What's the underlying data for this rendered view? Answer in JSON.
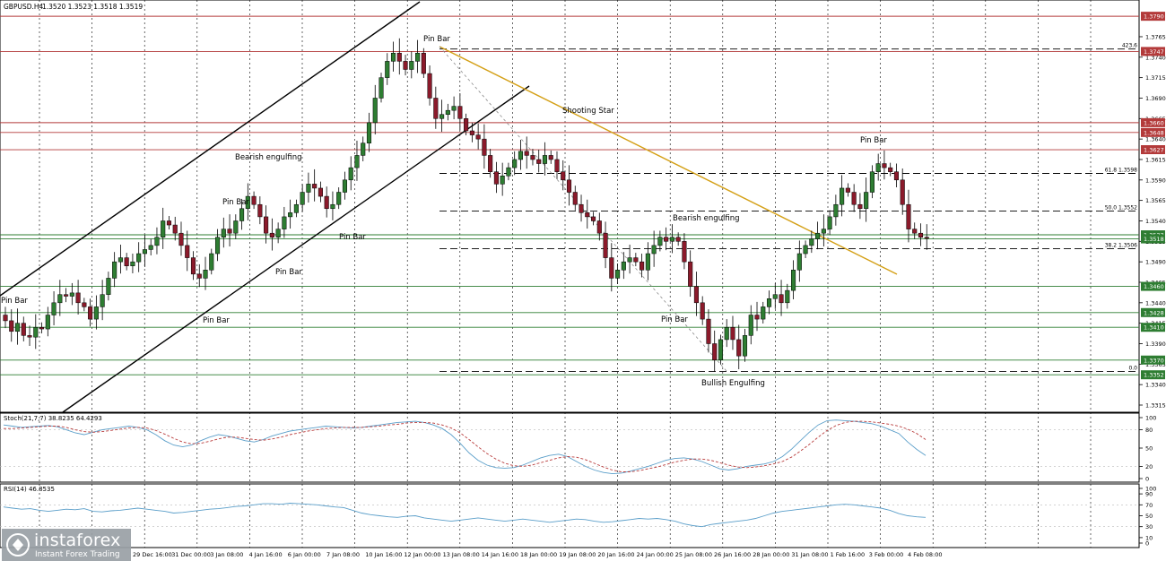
{
  "chart_data": [
    {
      "type": "candlestick",
      "symbol": "GBPUSD.H4",
      "ohlc_readout": [
        "1.3520",
        "1.3523",
        "1.3518",
        "1.3519"
      ],
      "y_range": [
        1.3315,
        1.38
      ],
      "price_ticks": [
        "1.3765",
        "1.3740",
        "1.3715",
        "1.3690",
        "1.3665",
        "1.3640",
        "1.3615",
        "1.3590",
        "1.3565",
        "1.3540",
        "1.3515",
        "1.3490",
        "1.3465",
        "1.3440",
        "1.3415",
        "1.3390",
        "1.3365",
        "1.3340",
        "1.3315"
      ],
      "horizontal_levels": [
        {
          "label": "1.3790",
          "price": 1.379,
          "color": "#b33a3a"
        },
        {
          "label": "1.3747",
          "price": 1.3747,
          "color": "#b33a3a"
        },
        {
          "label": "1.3660",
          "price": 1.366,
          "color": "#b33a3a"
        },
        {
          "label": "1.3648",
          "price": 1.3648,
          "color": "#b33a3a"
        },
        {
          "label": "1.3627",
          "price": 1.3627,
          "color": "#b33a3a"
        },
        {
          "label": "1.3523",
          "price": 1.3523,
          "color": "#2e7d32"
        },
        {
          "label": "1.3518",
          "price": 1.3518,
          "color": "#2e7d32"
        },
        {
          "label": "1.3460",
          "price": 1.346,
          "color": "#2e7d32"
        },
        {
          "label": "1.3428",
          "price": 1.3428,
          "color": "#2e7d32"
        },
        {
          "label": "1.3410",
          "price": 1.341,
          "color": "#2e7d32"
        },
        {
          "label": "1.3370",
          "price": 1.337,
          "color": "#2e7d32"
        },
        {
          "label": "1.3352",
          "price": 1.3352,
          "color": "#2e7d32"
        }
      ],
      "fibonacci": [
        {
          "label": "423.6",
          "price": 1.375
        },
        {
          "label": "61.8 1.3598",
          "price": 1.3598
        },
        {
          "label": "50.0 1.3552",
          "price": 1.3552
        },
        {
          "label": "38.2 1.3506",
          "price": 1.3506
        },
        {
          "label": "0.0",
          "price": 1.3356
        }
      ],
      "x_labels": [
        "29 Dec 16:00",
        "31 Dec 00:00",
        "3 Jan 08:00",
        "4 Jan 16:00",
        "6 Jan 00:00",
        "7 Jan 08:00",
        "10 Jan 16:00",
        "12 Jan 00:00",
        "13 Jan 08:00",
        "14 Jan 16:00",
        "18 Jan 00:00",
        "19 Jan 08:00",
        "20 Jan 16:00",
        "24 Jan 00:00",
        "25 Jan 08:00",
        "26 Jan 16:00",
        "28 Jan 00:00",
        "31 Jan 08:00",
        "1 Feb 16:00",
        "3 Feb 00:00",
        "4 Feb 08:00"
      ],
      "annotations": [
        "Pin Bar",
        "Shooting Star",
        "Bearish engulfing",
        "Pin Bar",
        "Pin Bar",
        "Pin Bar",
        "Pin Bar",
        "Pin Bar",
        "Bearish engulfing",
        "Pin Bar",
        "Bullish Engulfing",
        "Pin Bar"
      ],
      "price_path": [
        1.3425,
        1.3418,
        1.3405,
        1.3415,
        1.34,
        1.3398,
        1.341,
        1.3408,
        1.3425,
        1.344,
        1.345,
        1.3448,
        1.3452,
        1.344,
        1.3435,
        1.342,
        1.3435,
        1.345,
        1.347,
        1.349,
        1.3495,
        1.3485,
        1.349,
        1.35,
        1.3505,
        1.351,
        1.352,
        1.354,
        1.3535,
        1.3525,
        1.351,
        1.3495,
        1.3475,
        1.347,
        1.348,
        1.35,
        1.352,
        1.353,
        1.3525,
        1.354,
        1.3555,
        1.357,
        1.356,
        1.3545,
        1.3525,
        1.352,
        1.353,
        1.3545,
        1.355,
        1.356,
        1.3575,
        1.3585,
        1.358,
        1.357,
        1.3555,
        1.356,
        1.3575,
        1.359,
        1.3605,
        1.362,
        1.3635,
        1.366,
        1.369,
        1.3715,
        1.3735,
        1.3745,
        1.3735,
        1.3725,
        1.3735,
        1.3745,
        1.372,
        1.369,
        1.3665,
        1.367,
        1.3675,
        1.368,
        1.3665,
        1.365,
        1.3645,
        1.364,
        1.362,
        1.36,
        1.3585,
        1.3595,
        1.3605,
        1.3615,
        1.3625,
        1.362,
        1.3615,
        1.361,
        1.362,
        1.3615,
        1.36,
        1.359,
        1.3575,
        1.356,
        1.355,
        1.3545,
        1.354,
        1.3525,
        1.3495,
        1.347,
        1.348,
        1.349,
        1.3495,
        1.349,
        1.348,
        1.35,
        1.351,
        1.352,
        1.3515,
        1.352,
        1.3515,
        1.349,
        1.346,
        1.344,
        1.342,
        1.339,
        1.337,
        1.3395,
        1.341,
        1.3395,
        1.3375,
        1.34,
        1.3425,
        1.342,
        1.3435,
        1.3445,
        1.345,
        1.344,
        1.3455,
        1.348,
        1.35,
        1.351,
        1.3518,
        1.3525,
        1.353,
        1.3545,
        1.356,
        1.358,
        1.3575,
        1.356,
        1.3555,
        1.3575,
        1.36,
        1.361,
        1.3605,
        1.36,
        1.359,
        1.356,
        1.353,
        1.3525,
        1.352,
        1.3519
      ]
    },
    {
      "type": "line",
      "title": "Stoch(21,7,7) 38.8235 64.4293",
      "y_ticks": [
        "100",
        "80",
        "50",
        "20",
        "0"
      ],
      "y_range": [
        0,
        100
      ],
      "series": [
        {
          "values": [
            88,
            86,
            84,
            85,
            86,
            87,
            85,
            80,
            75,
            72,
            76,
            80,
            82,
            84,
            86,
            84,
            80,
            72,
            62,
            55,
            52,
            55,
            62,
            68,
            72,
            70,
            66,
            62,
            60,
            64,
            70,
            74,
            78,
            80,
            82,
            84,
            86,
            85,
            84,
            83,
            84,
            86,
            88,
            90,
            92,
            93,
            94,
            92,
            88,
            82,
            72,
            58,
            42,
            30,
            22,
            18,
            17,
            18,
            22,
            28,
            34,
            38,
            40,
            36,
            28,
            20,
            14,
            10,
            8,
            9,
            12,
            16,
            20,
            25,
            30,
            33,
            34,
            32,
            28,
            22,
            16,
            14,
            16,
            20,
            22,
            24,
            28,
            36,
            48,
            62,
            76,
            88,
            95,
            96,
            95,
            94,
            92,
            90,
            86,
            80,
            74,
            60,
            48,
            38
          ]
        },
        {
          "values": [
            82,
            82,
            83,
            84,
            85,
            86,
            86,
            84,
            80,
            77,
            76,
            77,
            79,
            81,
            83,
            84,
            83,
            79,
            73,
            66,
            60,
            57,
            58,
            61,
            65,
            68,
            68,
            66,
            64,
            63,
            65,
            68,
            72,
            75,
            78,
            80,
            82,
            83,
            84,
            84,
            84,
            85,
            86,
            88,
            89,
            91,
            92,
            92,
            91,
            88,
            83,
            75,
            64,
            52,
            41,
            32,
            25,
            21,
            20,
            22,
            26,
            30,
            34,
            36,
            35,
            31,
            25,
            19,
            14,
            11,
            11,
            13,
            16,
            19,
            23,
            27,
            30,
            32,
            32,
            30,
            26,
            22,
            19,
            18,
            19,
            21,
            24,
            28,
            35,
            45,
            56,
            68,
            79,
            87,
            92,
            94,
            94,
            93,
            91,
            89,
            86,
            81,
            74,
            64
          ]
        }
      ]
    },
    {
      "type": "line",
      "title": "RSI(14) 46.8535",
      "y_ticks": [
        "100",
        "90",
        "70",
        "50",
        "30",
        "10",
        "0"
      ],
      "y_range": [
        0,
        100
      ],
      "series": [
        {
          "values": [
            66,
            64,
            62,
            63,
            60,
            58,
            60,
            62,
            61,
            63,
            58,
            57,
            59,
            60,
            62,
            64,
            62,
            60,
            58,
            55,
            56,
            58,
            60,
            62,
            63,
            65,
            67,
            68,
            70,
            72,
            72,
            71,
            73,
            72,
            71,
            70,
            68,
            66,
            65,
            60,
            55,
            52,
            50,
            48,
            47,
            49,
            50,
            46,
            44,
            42,
            40,
            42,
            44,
            46,
            44,
            42,
            40,
            42,
            44,
            42,
            40,
            38,
            40,
            42,
            44,
            43,
            40,
            38,
            39,
            41,
            43,
            45,
            44,
            45,
            43,
            40,
            35,
            32,
            30,
            34,
            36,
            38,
            40,
            42,
            45,
            50,
            55,
            58,
            60,
            62,
            64,
            66,
            68,
            70,
            71,
            70,
            68,
            66,
            64,
            60,
            54,
            50,
            48,
            47
          ]
        }
      ]
    }
  ],
  "branding": {
    "name": "instaforex",
    "tagline": "Instant Forex Trading"
  }
}
